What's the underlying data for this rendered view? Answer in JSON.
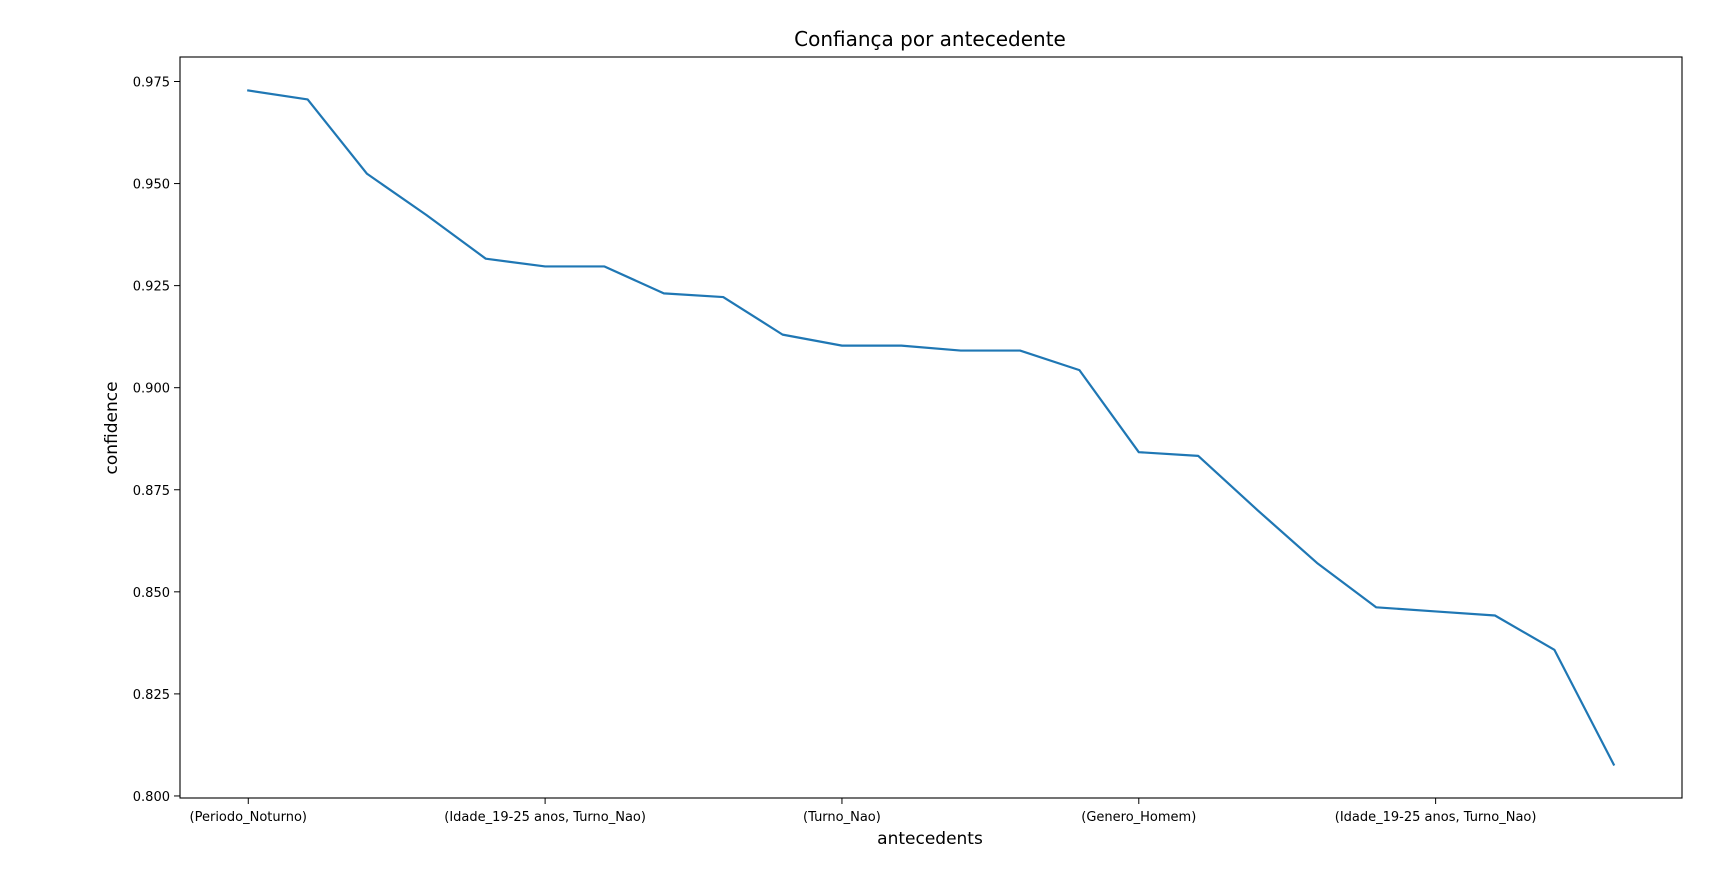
{
  "chart_data": {
    "type": "line",
    "title": "Confiança por antecedente",
    "xlabel": "antecedents",
    "ylabel": "confidence",
    "x_tick_labels": [
      "(Periodo_Noturno)",
      "(Idade_19-25 anos, Turno_Nao)",
      "(Turno_Nao)",
      "(Genero_Homem)",
      "(Idade_19-25 anos, Turno_Nao)"
    ],
    "x_tick_positions": [
      0,
      5,
      10,
      15,
      20
    ],
    "y_ticks": [
      "0.800",
      "0.825",
      "0.850",
      "0.875",
      "0.900",
      "0.925",
      "0.950",
      "0.975"
    ],
    "ylim": [
      0.7995,
      0.981
    ],
    "xlim": [
      -1.15,
      24.15
    ],
    "grid": false,
    "series": [
      {
        "color": "#1f77b4",
        "x": [
          0,
          1,
          2,
          3,
          4,
          5,
          6,
          7,
          8,
          9,
          10,
          11,
          12,
          13,
          14,
          15,
          16,
          17,
          18,
          19,
          20,
          21,
          22,
          23
        ],
        "values": [
          0.9728,
          0.9706,
          0.9524,
          0.9423,
          0.9316,
          0.9297,
          0.9297,
          0.9231,
          0.9222,
          0.913,
          0.9103,
          0.9103,
          0.9091,
          0.9091,
          0.9043,
          0.8842,
          0.8833,
          0.87,
          0.8571,
          0.8462,
          0.8452,
          0.8442,
          0.8358,
          0.8077
        ]
      }
    ]
  }
}
